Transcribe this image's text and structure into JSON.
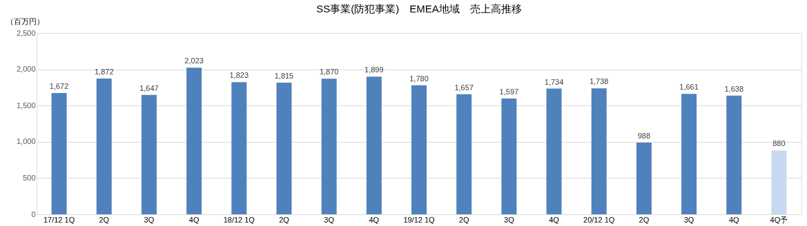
{
  "chart_data": {
    "type": "bar",
    "title": "SS事業(防犯事業)　EMEA地域　売上高推移",
    "ylabel": "（百万円）",
    "categories": [
      "17/12 1Q",
      "2Q",
      "3Q",
      "4Q",
      "18/12 1Q",
      "2Q",
      "3Q",
      "4Q",
      "19/12 1Q",
      "2Q",
      "3Q",
      "4Q",
      "20/12 1Q",
      "2Q",
      "3Q",
      "4Q",
      "4Q予"
    ],
    "values": [
      1672,
      1872,
      1647,
      2023,
      1823,
      1815,
      1870,
      1899,
      1780,
      1657,
      1597,
      1734,
      1738,
      988,
      1661,
      1638,
      880
    ],
    "colors": [
      "#4f81bd",
      "#4f81bd",
      "#4f81bd",
      "#4f81bd",
      "#4f81bd",
      "#4f81bd",
      "#4f81bd",
      "#4f81bd",
      "#4f81bd",
      "#4f81bd",
      "#4f81bd",
      "#4f81bd",
      "#4f81bd",
      "#4f81bd",
      "#4f81bd",
      "#4f81bd",
      "#c6d9f1"
    ],
    "ylim": [
      0,
      2500
    ],
    "yticks": [
      {
        "value": 0,
        "label": "0"
      },
      {
        "value": 500,
        "label": "500"
      },
      {
        "value": 1000,
        "label": "1,000"
      },
      {
        "value": 1500,
        "label": "1,500"
      },
      {
        "value": 2000,
        "label": "2,000"
      },
      {
        "value": 2500,
        "label": "2,500"
      }
    ],
    "value_labels": [
      "1,672",
      "1,872",
      "1,647",
      "2,023",
      "1,823",
      "1,815",
      "1,870",
      "1,899",
      "1,780",
      "1,657",
      "1,597",
      "1,734",
      "1,738",
      "988",
      "1,661",
      "1,638",
      "880"
    ],
    "grid": "y"
  }
}
